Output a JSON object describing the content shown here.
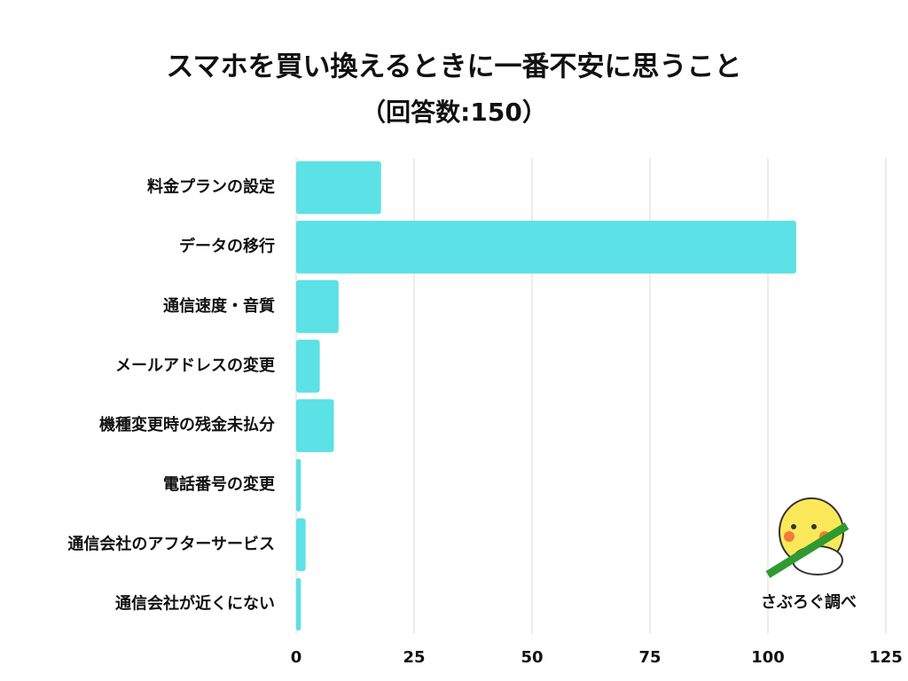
{
  "chart_data": {
    "type": "bar",
    "orientation": "horizontal",
    "title": "スマホを買い換えるときに一番不安に思うこと",
    "subtitle": "（回答数:150）",
    "categories": [
      "料金プランの設定",
      "データの移行",
      "通信速度・音質",
      "メールアドレスの変更",
      "機種変更時の残金未払分",
      "電話番号の変更",
      "通信会社のアフターサービス",
      "通信会社が近くにない"
    ],
    "values": [
      18,
      106,
      9,
      5,
      8,
      1,
      2,
      1
    ],
    "color": "#5ce1e6",
    "xlim": [
      0,
      125
    ],
    "xticks": [
      0,
      25,
      50,
      75,
      100,
      125
    ],
    "grid": true,
    "annotation": "さぶろぐ調べ"
  }
}
